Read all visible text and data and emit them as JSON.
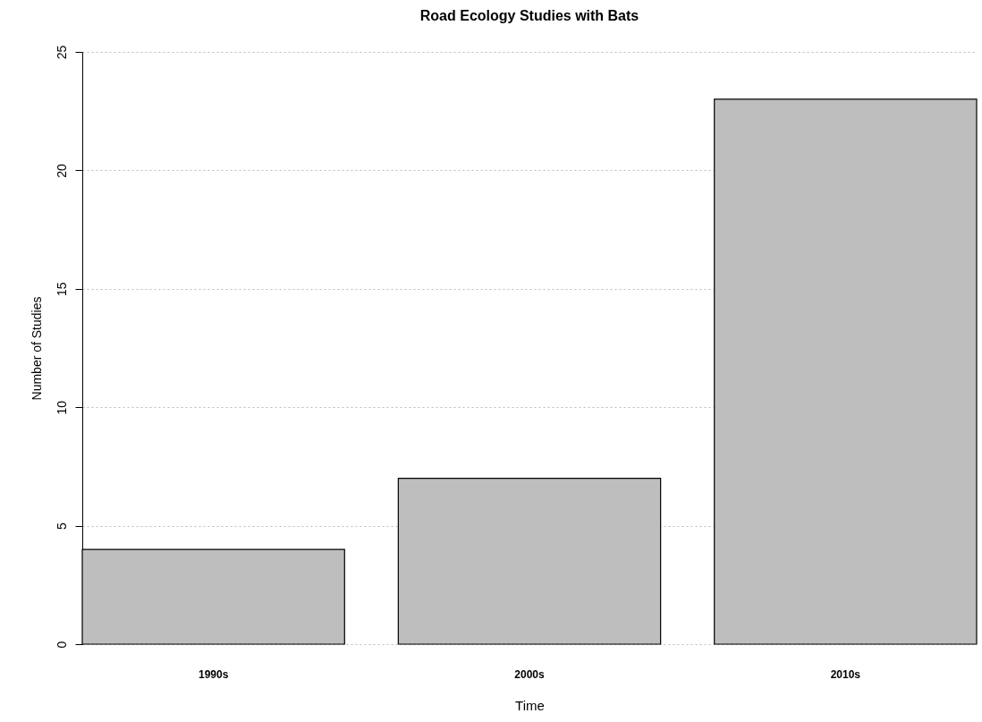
{
  "chart_data": {
    "type": "bar",
    "title": "Road Ecology Studies with Bats",
    "xlabel": "Time",
    "ylabel": "Number of Studies",
    "categories": [
      "1990s",
      "2000s",
      "2010s"
    ],
    "values": [
      4,
      7,
      23
    ],
    "color": "#bebebe",
    "ylim": [
      0,
      25
    ],
    "yticks": [
      0,
      5,
      10,
      15,
      20,
      25
    ],
    "grid": "y"
  }
}
